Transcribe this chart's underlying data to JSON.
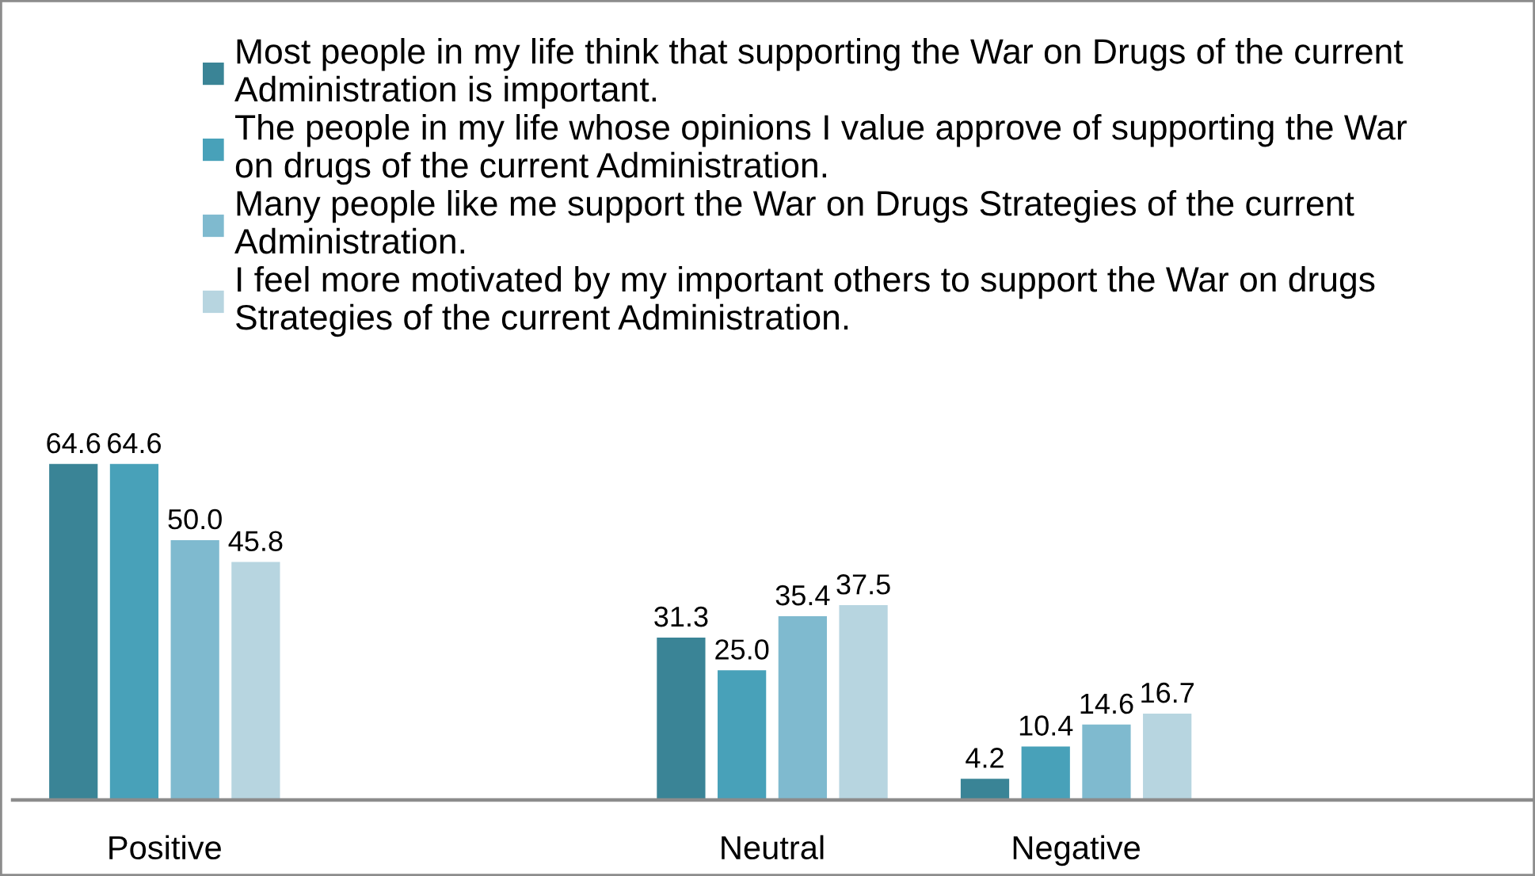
{
  "chart_data": {
    "type": "bar",
    "categories": [
      "Positive",
      null,
      "Neutral",
      "Negative",
      null
    ],
    "series": [
      {
        "name": "Most people in my life think that supporting the War on Drugs of the current Administration is important.",
        "color": "#3a8496",
        "values": [
          64.6,
          null,
          31.3,
          4.2,
          null
        ],
        "value_labels": [
          "64.6",
          null,
          "31.3",
          "4.2",
          null
        ]
      },
      {
        "name": "The people in my life whose opinions I value approve of supporting the War on drugs of the current Administration.",
        "color": "#48a1b9",
        "values": [
          64.6,
          null,
          25.0,
          10.4,
          null
        ],
        "value_labels": [
          "64.6",
          null,
          "25.0",
          "10.4",
          null
        ]
      },
      {
        "name": "Many people like me support the War on Drugs Strategies of the current Administration.",
        "color": "#7fbacf",
        "values": [
          50.0,
          null,
          35.4,
          14.6,
          null
        ],
        "value_labels": [
          "50.0",
          null,
          "35.4",
          "14.6",
          null
        ]
      },
      {
        "name": "I feel more motivated by my important others to support the War on drugs Strategies of the current Administration.",
        "color": "#b7d5e0",
        "values": [
          45.8,
          null,
          37.5,
          16.7,
          null
        ],
        "value_labels": [
          "45.8",
          null,
          "37.5",
          "16.7",
          null
        ]
      }
    ],
    "legend": "top",
    "tick_labels": "x"
  }
}
